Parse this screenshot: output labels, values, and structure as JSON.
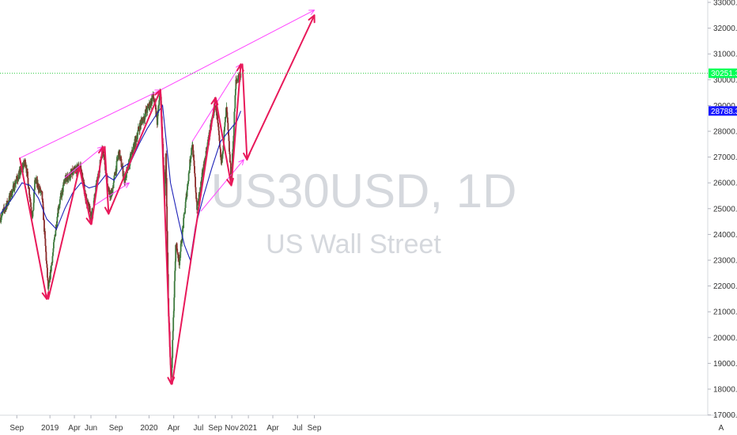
{
  "chart_data": {
    "type": "candlestick",
    "symbol_watermark": "US30USD, 1D",
    "name_watermark": "US Wall Street",
    "y_axis": {
      "range": [
        17000,
        33000
      ],
      "ticks": [
        "33000.0",
        "32000.0",
        "31000.0",
        "30000.0",
        "29000.0",
        "28000.0",
        "27000.0",
        "26000.0",
        "25000.0",
        "24000.0",
        "23000.0",
        "22000.0",
        "21000.0",
        "20000.0",
        "19000.0",
        "18000.0",
        "17000.0"
      ],
      "tick_values": [
        33000,
        32000,
        31000,
        30000,
        29000,
        28000,
        27000,
        26000,
        25000,
        24000,
        23000,
        22000,
        21000,
        20000,
        19000,
        18000,
        17000
      ]
    },
    "x_axis": {
      "labels": [
        "Sep",
        "2019",
        "Apr",
        "Jun",
        "Sep",
        "2020",
        "Apr",
        "Jul",
        "Sep",
        "Nov",
        "2021",
        "Apr",
        "Jul",
        "Sep"
      ],
      "dates": [
        "2018-09-01",
        "2019-01-01",
        "2019-04-01",
        "2019-06-01",
        "2019-09-01",
        "2020-01-01",
        "2020-04-01",
        "2020-07-01",
        "2020-09-01",
        "2020-11-01",
        "2021-01-01",
        "2021-04-01",
        "2021-07-01",
        "2021-09-01"
      ]
    },
    "price_tags": {
      "last_price": {
        "label": "30251.3",
        "value": 30251.3,
        "color": "#00ff55"
      },
      "moving_average": {
        "label": "28788.3",
        "value": 28788.3,
        "color": "#1a1aff"
      }
    },
    "path_points": [
      [
        "2018-07-03",
        24650
      ],
      [
        "2018-08-01",
        25300
      ],
      [
        "2018-08-29",
        26050
      ],
      [
        "2018-10-03",
        26850
      ],
      [
        "2018-10-29",
        24600
      ],
      [
        "2018-11-07",
        26150
      ],
      [
        "2018-12-03",
        25500
      ],
      [
        "2018-12-26",
        21800
      ],
      [
        "2019-01-31",
        25000
      ],
      [
        "2019-02-25",
        26100
      ],
      [
        "2019-04-23",
        26650
      ],
      [
        "2019-05-13",
        25400
      ],
      [
        "2019-06-03",
        24700
      ],
      [
        "2019-07-15",
        27400
      ],
      [
        "2019-08-05",
        25600
      ],
      [
        "2019-08-15",
        25500
      ],
      [
        "2019-09-12",
        27200
      ],
      [
        "2019-10-03",
        26100
      ],
      [
        "2019-11-27",
        28200
      ],
      [
        "2020-01-17",
        29350
      ],
      [
        "2020-01-31",
        28400
      ],
      [
        "2020-02-12",
        29600
      ],
      [
        "2020-02-28",
        25400
      ],
      [
        "2020-03-03",
        27000
      ],
      [
        "2020-03-12",
        21200
      ],
      [
        "2020-03-23",
        18300
      ],
      [
        "2020-04-09",
        23700
      ],
      [
        "2020-04-21",
        22900
      ],
      [
        "2020-06-08",
        27600
      ],
      [
        "2020-06-26",
        25000
      ],
      [
        "2020-07-20",
        26600
      ],
      [
        "2020-09-02",
        29200
      ],
      [
        "2020-09-23",
        26700
      ],
      [
        "2020-10-12",
        28900
      ],
      [
        "2020-10-30",
        26100
      ],
      [
        "2020-11-16",
        29900
      ],
      [
        "2020-12-04",
        30300
      ]
    ],
    "moving_average": [
      [
        "2018-07-03",
        24800
      ],
      [
        "2018-08-15",
        25400
      ],
      [
        "2018-09-20",
        26000
      ],
      [
        "2018-10-20",
        25900
      ],
      [
        "2018-11-20",
        25400
      ],
      [
        "2018-12-20",
        24600
      ],
      [
        "2019-01-25",
        24200
      ],
      [
        "2019-02-25",
        25000
      ],
      [
        "2019-03-25",
        25600
      ],
      [
        "2019-04-25",
        26000
      ],
      [
        "2019-05-25",
        25800
      ],
      [
        "2019-06-25",
        25900
      ],
      [
        "2019-07-25",
        26300
      ],
      [
        "2019-08-25",
        26100
      ],
      [
        "2019-09-25",
        26600
      ],
      [
        "2019-10-25",
        26800
      ],
      [
        "2019-11-25",
        27500
      ],
      [
        "2019-12-25",
        28100
      ],
      [
        "2020-01-25",
        28600
      ],
      [
        "2020-02-20",
        29000
      ],
      [
        "2020-03-20",
        26000
      ],
      [
        "2020-04-20",
        24500
      ],
      [
        "2020-05-10",
        23600
      ],
      [
        "2020-06-01",
        23000
      ],
      [
        "2020-06-20",
        24300
      ],
      [
        "2020-07-20",
        25500
      ],
      [
        "2020-08-20",
        26600
      ],
      [
        "2020-09-20",
        27600
      ],
      [
        "2020-10-20",
        28000
      ],
      [
        "2020-11-20",
        28400
      ],
      [
        "2020-12-04",
        28788.3
      ]
    ],
    "annotations": {
      "magenta_lines": [
        [
          [
            "2018-09-10",
            26950
          ],
          [
            "2020-02-12",
            29600
          ]
        ],
        [
          [
            "2020-02-12",
            29600
          ],
          [
            "2021-09-01",
            32700
          ]
        ],
        [
          [
            "2019-02-25",
            26200
          ],
          [
            "2019-07-15",
            27400
          ]
        ],
        [
          [
            "2019-06-10",
            25100
          ],
          [
            "2019-10-20",
            26000
          ]
        ],
        [
          [
            "2020-06-08",
            27600
          ],
          [
            "2020-12-04",
            30600
          ]
        ],
        [
          [
            "2020-07-10",
            24900
          ],
          [
            "2020-12-15",
            26900
          ]
        ]
      ],
      "red_arrows": [
        [
          [
            "2018-09-12",
            26950
          ],
          [
            "2018-12-20",
            21500
          ]
        ],
        [
          [
            "2018-12-26",
            21500
          ],
          [
            "2019-04-20",
            26600
          ]
        ],
        [
          [
            "2019-04-20",
            26600
          ],
          [
            "2019-06-01",
            24400
          ]
        ],
        [
          [
            "2019-06-03",
            24400
          ],
          [
            "2019-07-15",
            27400
          ]
        ],
        [
          [
            "2019-07-22",
            27400
          ],
          [
            "2019-08-05",
            24800
          ]
        ],
        [
          [
            "2019-08-05",
            24800
          ],
          [
            "2020-02-12",
            29600
          ]
        ],
        [
          [
            "2020-02-12",
            29600
          ],
          [
            "2020-03-23",
            18200
          ]
        ],
        [
          [
            "2020-03-26",
            18200
          ],
          [
            "2020-09-02",
            29300
          ]
        ],
        [
          [
            "2020-09-02",
            29300
          ],
          [
            "2020-10-30",
            25900
          ]
        ],
        [
          [
            "2020-10-30",
            25900
          ],
          [
            "2020-12-04",
            30600
          ]
        ],
        [
          [
            "2020-12-10",
            30600
          ],
          [
            "2020-12-27",
            26900
          ]
        ],
        [
          [
            "2020-12-30",
            27000
          ],
          [
            "2021-09-01",
            32500
          ]
        ]
      ]
    }
  },
  "footer": {
    "tradingview_glyph": "A"
  }
}
